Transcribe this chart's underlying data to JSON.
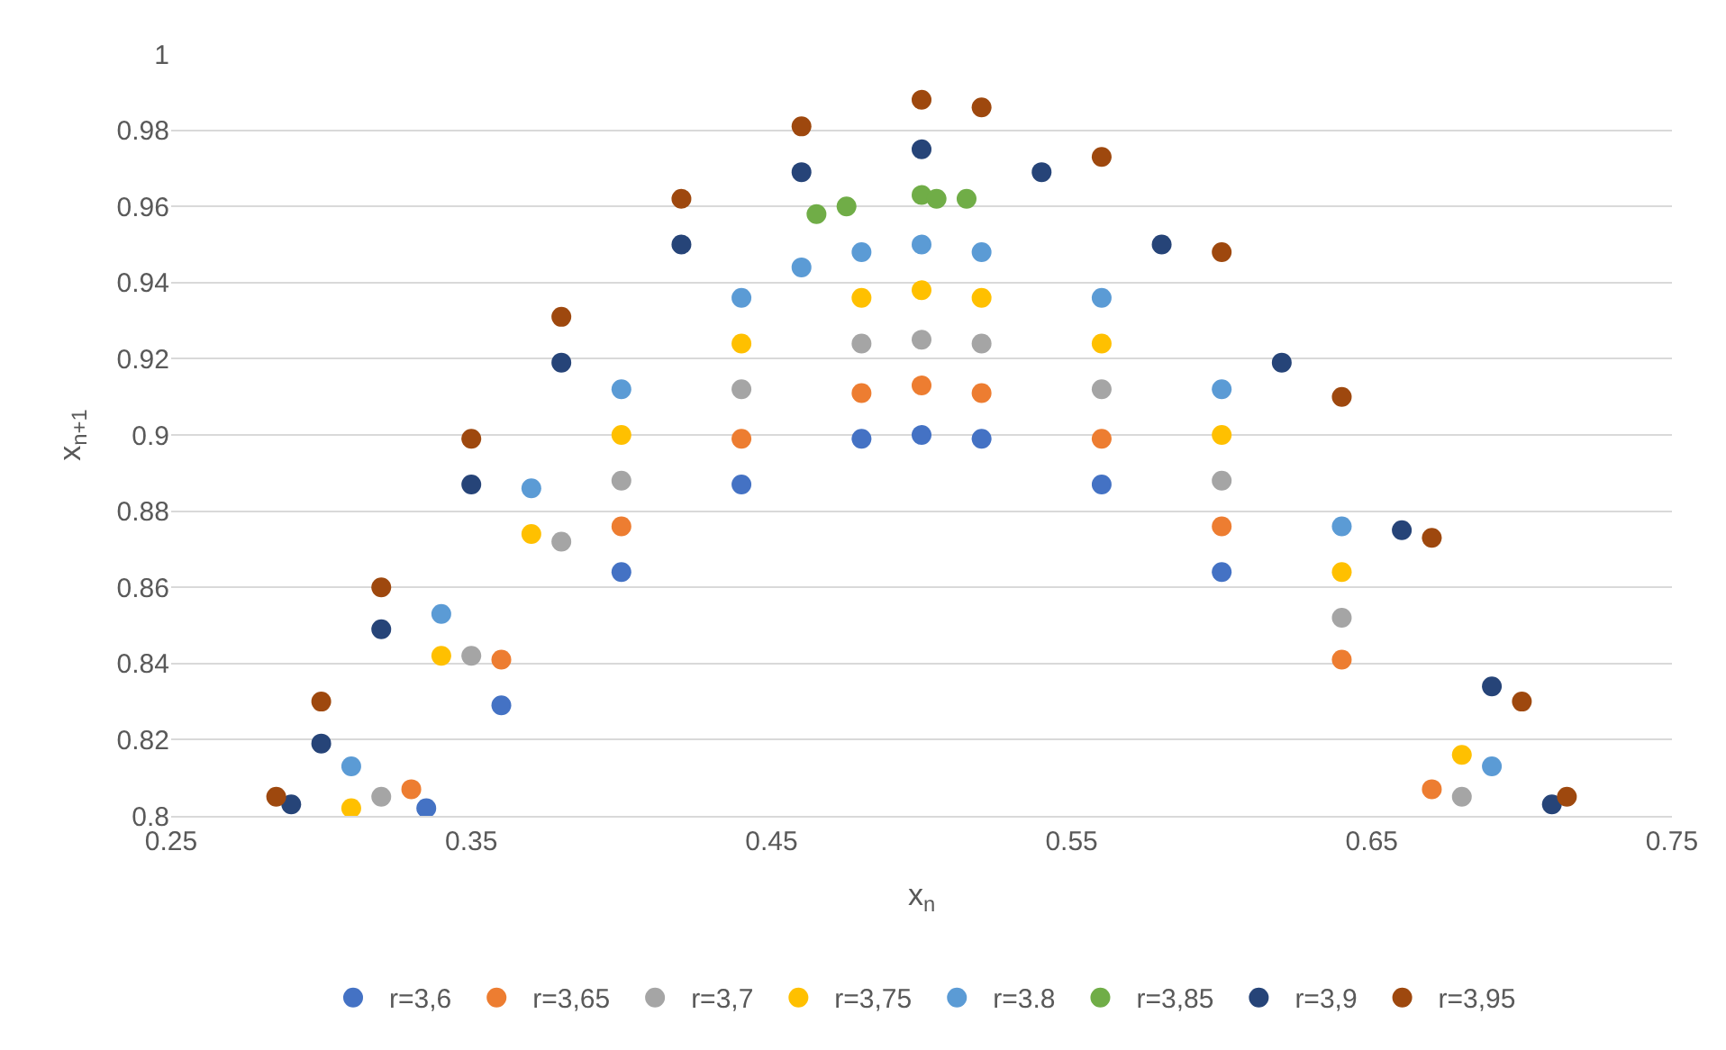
{
  "chart_data": {
    "type": "scatter",
    "xlabel": "x$_{n}$",
    "ylabel": "x$_{n+1}$",
    "xlim": [
      0.25,
      0.75
    ],
    "xticks": [
      0.25,
      0.35,
      0.45,
      0.55,
      0.65,
      0.75
    ],
    "ylim": [
      0.8,
      1
    ],
    "yticks": [
      0.8,
      0.82,
      0.84,
      0.86,
      0.88,
      0.9,
      0.92,
      0.94,
      0.96,
      0.98,
      1
    ],
    "grid": "y",
    "legend": "bottom",
    "marker": "circle",
    "series": [
      {
        "name": "r=3,6",
        "color": "#4472c4",
        "x": [
          0.335,
          0.36,
          0.4,
          0.44,
          0.48,
          0.5,
          0.52,
          0.56,
          0.6
        ],
        "values": [
          0.802,
          0.829,
          0.864,
          0.887,
          0.899,
          0.9,
          0.899,
          0.887,
          0.864
        ]
      },
      {
        "name": "r=3,65",
        "color": "#ed7d31",
        "x": [
          0.33,
          0.36,
          0.4,
          0.44,
          0.48,
          0.5,
          0.52,
          0.56,
          0.6,
          0.64,
          0.67
        ],
        "values": [
          0.807,
          0.841,
          0.876,
          0.899,
          0.911,
          0.913,
          0.911,
          0.899,
          0.876,
          0.841,
          0.807
        ]
      },
      {
        "name": "r=3,7",
        "color": "#a5a5a5",
        "x": [
          0.32,
          0.35,
          0.38,
          0.4,
          0.44,
          0.48,
          0.5,
          0.52,
          0.56,
          0.6,
          0.64,
          0.68
        ],
        "values": [
          0.805,
          0.842,
          0.872,
          0.888,
          0.912,
          0.924,
          0.925,
          0.924,
          0.912,
          0.888,
          0.852,
          0.805
        ]
      },
      {
        "name": "r=3,75",
        "color": "#ffc000",
        "x": [
          0.31,
          0.34,
          0.37,
          0.4,
          0.44,
          0.48,
          0.5,
          0.52,
          0.56,
          0.6,
          0.64,
          0.68
        ],
        "values": [
          0.802,
          0.842,
          0.874,
          0.9,
          0.924,
          0.936,
          0.938,
          0.936,
          0.924,
          0.9,
          0.864,
          0.816
        ]
      },
      {
        "name": "r=3.8",
        "color": "#5b9bd5",
        "x": [
          0.31,
          0.34,
          0.37,
          0.4,
          0.44,
          0.46,
          0.48,
          0.5,
          0.52,
          0.56,
          0.6,
          0.64,
          0.69
        ],
        "values": [
          0.813,
          0.853,
          0.886,
          0.912,
          0.936,
          0.944,
          0.948,
          0.95,
          0.948,
          0.936,
          0.912,
          0.876,
          0.813
        ]
      },
      {
        "name": "r=3,85",
        "color": "#70ad47",
        "x": [
          0.465,
          0.475,
          0.5,
          0.505,
          0.515
        ],
        "values": [
          0.958,
          0.96,
          0.963,
          0.962,
          0.962
        ]
      },
      {
        "name": "r=3,9",
        "color": "#264478",
        "x": [
          0.29,
          0.3,
          0.32,
          0.35,
          0.38,
          0.42,
          0.46,
          0.5,
          0.54,
          0.58,
          0.62,
          0.66,
          0.69,
          0.71
        ],
        "values": [
          0.803,
          0.819,
          0.849,
          0.887,
          0.919,
          0.95,
          0.969,
          0.975,
          0.969,
          0.95,
          0.919,
          0.875,
          0.834,
          0.803
        ]
      },
      {
        "name": "r=3,95",
        "color": "#9e480e",
        "x": [
          0.285,
          0.3,
          0.32,
          0.35,
          0.38,
          0.42,
          0.46,
          0.5,
          0.52,
          0.56,
          0.6,
          0.64,
          0.67,
          0.7,
          0.715
        ],
        "values": [
          0.805,
          0.83,
          0.86,
          0.899,
          0.931,
          0.962,
          0.981,
          0.988,
          0.986,
          0.973,
          0.948,
          0.91,
          0.873,
          0.83,
          0.805
        ]
      }
    ]
  }
}
